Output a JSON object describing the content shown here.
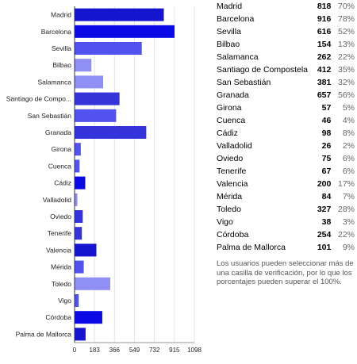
{
  "chart_data": {
    "type": "bar",
    "orientation": "horizontal",
    "categories": [
      "Madrid",
      "Barcelona",
      "Sevilla",
      "Bilbao",
      "Salamanca",
      "Santiago de Compo...",
      "San Sebastián",
      "Granada",
      "Girona",
      "Cuenca",
      "Cádiz",
      "Valladolid",
      "Oviedo",
      "Tenerife",
      "Valencia",
      "Mérida",
      "Toledo",
      "Vigo",
      "Córdoba",
      "Palma de Mallorca"
    ],
    "values": [
      818,
      916,
      616,
      154,
      262,
      412,
      381,
      657,
      57,
      46,
      98,
      26,
      75,
      67,
      200,
      84,
      327,
      38,
      254,
      101
    ],
    "bar_colors": [
      "#1515d0",
      "#0a0ae6",
      "#5252ee",
      "#8f8ff5",
      "#8f8ff5",
      "#3434da",
      "#5252ee",
      "#3434da",
      "#5252ee",
      "#5252ee",
      "#0a0ae6",
      "#8f8ff5",
      "#3434da",
      "#3434da",
      "#1515d0",
      "#5252ee",
      "#8f8ff5",
      "#5252ee",
      "#0a0ae6",
      "#1515d0"
    ],
    "xlim": [
      0,
      1098
    ],
    "xticks": [
      "0",
      "183",
      "366",
      "549",
      "732",
      "915",
      "1098"
    ],
    "grid": true
  },
  "table": {
    "rows": [
      {
        "name": "Madrid",
        "count": "818",
        "pct": "70%"
      },
      {
        "name": "Barcelona",
        "count": "916",
        "pct": "78%"
      },
      {
        "name": "Sevilla",
        "count": "616",
        "pct": "52%"
      },
      {
        "name": "Bilbao",
        "count": "154",
        "pct": "13%"
      },
      {
        "name": "Salamanca",
        "count": "262",
        "pct": "22%"
      },
      {
        "name": "Santiago de Compostela",
        "count": "412",
        "pct": "35%"
      },
      {
        "name": "San Sebastián",
        "count": "381",
        "pct": "32%"
      },
      {
        "name": "Granada",
        "count": "657",
        "pct": "56%"
      },
      {
        "name": "Girona",
        "count": "57",
        "pct": "5%"
      },
      {
        "name": "Cuenca",
        "count": "46",
        "pct": "4%"
      },
      {
        "name": "Cádiz",
        "count": "98",
        "pct": "8%"
      },
      {
        "name": "Valladolid",
        "count": "26",
        "pct": "2%"
      },
      {
        "name": "Oviedo",
        "count": "75",
        "pct": "6%"
      },
      {
        "name": "Tenerife",
        "count": "67",
        "pct": "6%"
      },
      {
        "name": "Valencia",
        "count": "200",
        "pct": "17%"
      },
      {
        "name": "Mérida",
        "count": "84",
        "pct": "7%"
      },
      {
        "name": "Toledo",
        "count": "327",
        "pct": "28%"
      },
      {
        "name": "Vigo",
        "count": "38",
        "pct": "3%"
      },
      {
        "name": "Córdoba",
        "count": "254",
        "pct": "22%"
      },
      {
        "name": "Palma de Mallorca",
        "count": "101",
        "pct": "9%"
      }
    ]
  },
  "note": "Los usuarios pueden seleccionar más de una casilla de verificación, por lo que los porcentajes pueden superar el 100%."
}
